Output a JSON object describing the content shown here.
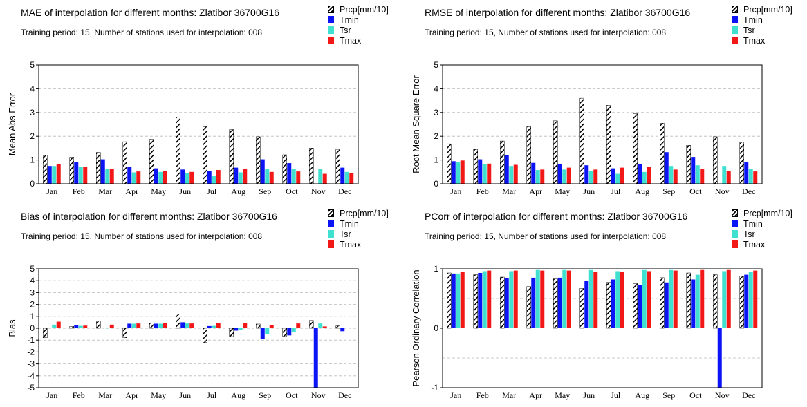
{
  "legend": [
    {
      "name": "Prcp[mm/10]",
      "color": "hatch"
    },
    {
      "name": "Tmin",
      "color": "#0a14f5"
    },
    {
      "name": "Tsr",
      "color": "#40e0d0"
    },
    {
      "name": "Tmax",
      "color": "#f21818"
    }
  ],
  "panels": {
    "mae": {
      "title": "MAE of interpolation for different months: Zlatibor  36700G16",
      "subtitle": "Training period: 15, Number of stations used for interpolation: 008"
    },
    "rmse": {
      "title": "RMSE of interpolation for different months: Zlatibor  36700G16",
      "subtitle": "Training period: 15, Number of stations used for interpolation: 008"
    },
    "bias": {
      "title": "Bias of interpolation for different months: Zlatibor  36700G16",
      "subtitle": "Training period: 15, Number of stations used for interpolation: 008"
    },
    "pcorr": {
      "title": "PCorr of interpolation for different months: Zlatibor  36700G16",
      "subtitle": "Training period: 15, Number of stations used for interpolation: 008"
    }
  },
  "chart_data": [
    {
      "id": "mae",
      "type": "bar",
      "ylabel": "Mean Abs Error",
      "ylim": [
        0,
        5
      ],
      "yticks": [
        0,
        1,
        2,
        3,
        4,
        5
      ],
      "grid": "y-dashed-at-ticks",
      "categories": [
        "Jan",
        "Feb",
        "Mar",
        "Apr",
        "May",
        "Jun",
        "Jul",
        "Aug",
        "Sep",
        "Oct",
        "Nov",
        "Dec"
      ],
      "series": [
        {
          "name": "Prcp[mm/10]",
          "values": [
            1.2,
            1.12,
            1.32,
            1.77,
            1.87,
            2.8,
            2.4,
            2.28,
            1.98,
            1.22,
            1.5,
            1.45
          ]
        },
        {
          "name": "Tmin",
          "values": [
            0.75,
            0.9,
            1.03,
            0.72,
            0.65,
            0.6,
            0.55,
            0.68,
            1.03,
            0.87,
            null,
            0.68
          ]
        },
        {
          "name": "Tsr",
          "values": [
            0.75,
            0.72,
            0.62,
            0.48,
            0.5,
            0.45,
            0.32,
            0.48,
            0.62,
            0.62,
            0.62,
            0.5
          ]
        },
        {
          "name": "Tmax",
          "values": [
            0.82,
            0.72,
            0.62,
            0.52,
            0.55,
            0.5,
            0.58,
            0.62,
            0.5,
            0.52,
            0.42,
            0.45
          ]
        }
      ]
    },
    {
      "id": "rmse",
      "type": "bar",
      "ylabel": "Root Mean Square Error",
      "ylim": [
        0,
        5
      ],
      "yticks": [
        0,
        1,
        2,
        3,
        4,
        5
      ],
      "grid": "y-dashed-at-ticks",
      "categories": [
        "Jan",
        "Feb",
        "Mar",
        "Apr",
        "May",
        "Jun",
        "Jul",
        "Aug",
        "Sep",
        "Oct",
        "Nov",
        "Dec"
      ],
      "series": [
        {
          "name": "Prcp[mm/10]",
          "values": [
            1.68,
            1.45,
            1.8,
            2.4,
            2.65,
            3.6,
            3.3,
            2.95,
            2.55,
            1.62,
            1.98,
            1.75
          ]
        },
        {
          "name": "Tmin",
          "values": [
            0.95,
            1.03,
            1.2,
            0.88,
            0.82,
            0.78,
            0.65,
            0.82,
            1.33,
            1.13,
            null,
            0.9
          ]
        },
        {
          "name": "Tsr",
          "values": [
            0.9,
            0.82,
            0.75,
            0.58,
            0.6,
            0.55,
            0.42,
            0.5,
            0.75,
            0.78,
            0.75,
            0.62
          ]
        },
        {
          "name": "Tmax",
          "values": [
            0.98,
            0.85,
            0.8,
            0.6,
            0.68,
            0.6,
            0.68,
            0.72,
            0.6,
            0.62,
            0.55,
            0.52
          ]
        }
      ]
    },
    {
      "id": "bias",
      "type": "bar",
      "ylabel": "Bias",
      "ylim": [
        -5,
        5
      ],
      "yticks": [
        -5,
        -4,
        -3,
        -2,
        -1,
        0,
        1,
        2,
        3,
        4,
        5
      ],
      "grid": "y-dashed-at-ticks",
      "categories": [
        "Jan",
        "Feb",
        "Mar",
        "Apr",
        "May",
        "Jun",
        "Jul",
        "Aug",
        "Sep",
        "Oct",
        "Nov",
        "Dec"
      ],
      "series": [
        {
          "name": "Prcp[mm/10]",
          "values": [
            -0.8,
            0.15,
            0.6,
            -0.8,
            0.45,
            1.2,
            -1.2,
            -0.7,
            0.35,
            -0.7,
            0.65,
            0.2
          ]
        },
        {
          "name": "Tmin",
          "values": [
            0.05,
            0.25,
            0.05,
            0.38,
            0.38,
            0.5,
            0.18,
            -0.2,
            -0.9,
            -0.6,
            -5.0,
            -0.25
          ]
        },
        {
          "name": "Tsr",
          "values": [
            0.3,
            0.2,
            0.02,
            0.38,
            0.38,
            0.4,
            0.2,
            -0.12,
            -0.5,
            -0.35,
            0.4,
            0.05
          ]
        },
        {
          "name": "Tmax",
          "values": [
            0.55,
            0.22,
            0.3,
            0.4,
            0.45,
            0.4,
            0.45,
            0.45,
            0.25,
            0.4,
            0.15,
            0.05
          ]
        }
      ]
    },
    {
      "id": "pcorr",
      "type": "bar",
      "ylabel": "Pearson Ordinary Correlation",
      "ylim": [
        -1,
        1
      ],
      "yticks": [
        -1,
        0,
        1
      ],
      "grid": "y-dashed-half",
      "categories": [
        "Jan",
        "Feb",
        "Mar",
        "Apr",
        "May",
        "Jun",
        "Jul",
        "Aug",
        "Sep",
        "Oct",
        "Nov",
        "Dec"
      ],
      "series": [
        {
          "name": "Prcp[mm/10]",
          "values": [
            0.93,
            0.9,
            0.86,
            0.7,
            0.83,
            0.67,
            0.77,
            0.75,
            0.85,
            0.93,
            0.9,
            0.88
          ]
        },
        {
          "name": "Tmin",
          "values": [
            0.92,
            0.93,
            0.84,
            0.85,
            0.85,
            0.8,
            0.82,
            0.73,
            0.77,
            0.82,
            -1.0,
            0.9
          ]
        },
        {
          "name": "Tsr",
          "values": [
            0.92,
            0.96,
            0.96,
            0.98,
            0.98,
            0.98,
            0.96,
            0.98,
            0.98,
            0.9,
            0.96,
            0.95
          ]
        },
        {
          "name": "Tmax",
          "values": [
            0.95,
            0.97,
            0.97,
            0.97,
            0.97,
            0.95,
            0.95,
            0.96,
            0.97,
            0.98,
            0.98,
            0.97
          ]
        }
      ]
    }
  ]
}
